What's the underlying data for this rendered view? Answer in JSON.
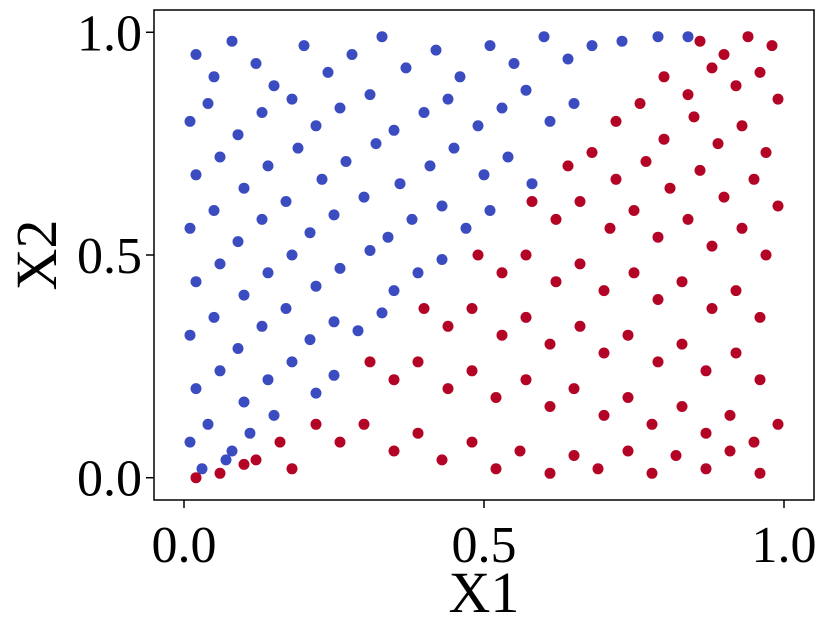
{
  "chart_data": {
    "type": "scatter",
    "title": "",
    "xlabel": "X1",
    "ylabel": "X2",
    "xlim": [
      -0.05,
      1.05
    ],
    "ylim": [
      -0.05,
      1.05
    ],
    "xticks": [
      0.0,
      0.5,
      1.0
    ],
    "yticks": [
      0.0,
      0.5,
      1.0
    ],
    "xtick_labels": [
      "0.0",
      "0.5",
      "1.0"
    ],
    "ytick_labels": [
      "0.0",
      "0.5",
      "1.0"
    ],
    "grid": false,
    "legend": "none",
    "boundary": "X2 = 1.2 * X1 - 0.02",
    "series": [
      {
        "color": "#3b4cc0",
        "points": [
          [
            0.02,
            0.95
          ],
          [
            0.05,
            0.9
          ],
          [
            0.08,
            0.98
          ],
          [
            0.12,
            0.93
          ],
          [
            0.15,
            0.88
          ],
          [
            0.2,
            0.97
          ],
          [
            0.24,
            0.91
          ],
          [
            0.28,
            0.95
          ],
          [
            0.33,
            0.99
          ],
          [
            0.37,
            0.92
          ],
          [
            0.42,
            0.96
          ],
          [
            0.46,
            0.9
          ],
          [
            0.51,
            0.97
          ],
          [
            0.55,
            0.93
          ],
          [
            0.6,
            0.99
          ],
          [
            0.64,
            0.94
          ],
          [
            0.68,
            0.97
          ],
          [
            0.73,
            0.98
          ],
          [
            0.79,
            0.99
          ],
          [
            0.84,
            0.99
          ],
          [
            0.01,
            0.8
          ],
          [
            0.04,
            0.84
          ],
          [
            0.09,
            0.77
          ],
          [
            0.13,
            0.82
          ],
          [
            0.18,
            0.85
          ],
          [
            0.22,
            0.79
          ],
          [
            0.26,
            0.83
          ],
          [
            0.31,
            0.86
          ],
          [
            0.35,
            0.78
          ],
          [
            0.4,
            0.82
          ],
          [
            0.44,
            0.85
          ],
          [
            0.49,
            0.79
          ],
          [
            0.53,
            0.83
          ],
          [
            0.57,
            0.87
          ],
          [
            0.61,
            0.8
          ],
          [
            0.65,
            0.84
          ],
          [
            0.02,
            0.68
          ],
          [
            0.06,
            0.72
          ],
          [
            0.1,
            0.65
          ],
          [
            0.14,
            0.7
          ],
          [
            0.19,
            0.74
          ],
          [
            0.23,
            0.67
          ],
          [
            0.27,
            0.71
          ],
          [
            0.32,
            0.75
          ],
          [
            0.36,
            0.66
          ],
          [
            0.41,
            0.7
          ],
          [
            0.45,
            0.74
          ],
          [
            0.5,
            0.68
          ],
          [
            0.54,
            0.72
          ],
          [
            0.58,
            0.66
          ],
          [
            0.01,
            0.56
          ],
          [
            0.05,
            0.6
          ],
          [
            0.09,
            0.53
          ],
          [
            0.13,
            0.58
          ],
          [
            0.17,
            0.62
          ],
          [
            0.21,
            0.55
          ],
          [
            0.25,
            0.59
          ],
          [
            0.3,
            0.63
          ],
          [
            0.34,
            0.54
          ],
          [
            0.38,
            0.58
          ],
          [
            0.43,
            0.61
          ],
          [
            0.47,
            0.56
          ],
          [
            0.51,
            0.6
          ],
          [
            0.02,
            0.44
          ],
          [
            0.06,
            0.48
          ],
          [
            0.1,
            0.41
          ],
          [
            0.14,
            0.46
          ],
          [
            0.18,
            0.5
          ],
          [
            0.22,
            0.43
          ],
          [
            0.26,
            0.47
          ],
          [
            0.31,
            0.51
          ],
          [
            0.35,
            0.42
          ],
          [
            0.39,
            0.46
          ],
          [
            0.43,
            0.49
          ],
          [
            0.01,
            0.32
          ],
          [
            0.05,
            0.36
          ],
          [
            0.09,
            0.29
          ],
          [
            0.13,
            0.34
          ],
          [
            0.17,
            0.38
          ],
          [
            0.21,
            0.31
          ],
          [
            0.25,
            0.35
          ],
          [
            0.29,
            0.33
          ],
          [
            0.33,
            0.37
          ],
          [
            0.02,
            0.2
          ],
          [
            0.06,
            0.24
          ],
          [
            0.1,
            0.17
          ],
          [
            0.14,
            0.22
          ],
          [
            0.18,
            0.26
          ],
          [
            0.22,
            0.19
          ],
          [
            0.25,
            0.23
          ],
          [
            0.01,
            0.08
          ],
          [
            0.04,
            0.12
          ],
          [
            0.08,
            0.06
          ],
          [
            0.11,
            0.1
          ],
          [
            0.15,
            0.14
          ],
          [
            0.03,
            0.02
          ],
          [
            0.07,
            0.04
          ]
        ]
      },
      {
        "color": "#b40426",
        "points": [
          [
            0.86,
            0.98
          ],
          [
            0.9,
            0.95
          ],
          [
            0.94,
            0.99
          ],
          [
            0.98,
            0.97
          ],
          [
            0.8,
            0.9
          ],
          [
            0.84,
            0.86
          ],
          [
            0.88,
            0.92
          ],
          [
            0.92,
            0.88
          ],
          [
            0.96,
            0.91
          ],
          [
            0.99,
            0.85
          ],
          [
            0.72,
            0.8
          ],
          [
            0.76,
            0.84
          ],
          [
            0.8,
            0.76
          ],
          [
            0.85,
            0.81
          ],
          [
            0.89,
            0.75
          ],
          [
            0.93,
            0.79
          ],
          [
            0.97,
            0.73
          ],
          [
            0.64,
            0.7
          ],
          [
            0.68,
            0.73
          ],
          [
            0.72,
            0.67
          ],
          [
            0.77,
            0.71
          ],
          [
            0.81,
            0.65
          ],
          [
            0.86,
            0.69
          ],
          [
            0.9,
            0.63
          ],
          [
            0.95,
            0.67
          ],
          [
            0.99,
            0.61
          ],
          [
            0.58,
            0.62
          ],
          [
            0.62,
            0.58
          ],
          [
            0.66,
            0.62
          ],
          [
            0.71,
            0.56
          ],
          [
            0.75,
            0.6
          ],
          [
            0.79,
            0.54
          ],
          [
            0.84,
            0.58
          ],
          [
            0.88,
            0.52
          ],
          [
            0.93,
            0.56
          ],
          [
            0.97,
            0.5
          ],
          [
            0.49,
            0.5
          ],
          [
            0.53,
            0.46
          ],
          [
            0.57,
            0.5
          ],
          [
            0.62,
            0.44
          ],
          [
            0.66,
            0.48
          ],
          [
            0.7,
            0.42
          ],
          [
            0.75,
            0.46
          ],
          [
            0.79,
            0.4
          ],
          [
            0.83,
            0.44
          ],
          [
            0.88,
            0.38
          ],
          [
            0.92,
            0.42
          ],
          [
            0.96,
            0.36
          ],
          [
            0.4,
            0.38
          ],
          [
            0.44,
            0.34
          ],
          [
            0.48,
            0.38
          ],
          [
            0.53,
            0.32
          ],
          [
            0.57,
            0.36
          ],
          [
            0.61,
            0.3
          ],
          [
            0.66,
            0.34
          ],
          [
            0.7,
            0.28
          ],
          [
            0.74,
            0.32
          ],
          [
            0.79,
            0.26
          ],
          [
            0.83,
            0.3
          ],
          [
            0.87,
            0.24
          ],
          [
            0.92,
            0.28
          ],
          [
            0.96,
            0.22
          ],
          [
            0.31,
            0.26
          ],
          [
            0.35,
            0.22
          ],
          [
            0.39,
            0.26
          ],
          [
            0.44,
            0.2
          ],
          [
            0.48,
            0.24
          ],
          [
            0.52,
            0.18
          ],
          [
            0.57,
            0.22
          ],
          [
            0.61,
            0.16
          ],
          [
            0.65,
            0.2
          ],
          [
            0.7,
            0.14
          ],
          [
            0.74,
            0.18
          ],
          [
            0.78,
            0.12
          ],
          [
            0.83,
            0.16
          ],
          [
            0.87,
            0.1
          ],
          [
            0.91,
            0.14
          ],
          [
            0.95,
            0.08
          ],
          [
            0.99,
            0.12
          ],
          [
            0.22,
            0.12
          ],
          [
            0.26,
            0.08
          ],
          [
            0.3,
            0.12
          ],
          [
            0.35,
            0.06
          ],
          [
            0.39,
            0.1
          ],
          [
            0.43,
            0.04
          ],
          [
            0.48,
            0.08
          ],
          [
            0.52,
            0.02
          ],
          [
            0.56,
            0.06
          ],
          [
            0.61,
            0.01
          ],
          [
            0.65,
            0.05
          ],
          [
            0.69,
            0.02
          ],
          [
            0.74,
            0.06
          ],
          [
            0.78,
            0.01
          ],
          [
            0.82,
            0.05
          ],
          [
            0.87,
            0.02
          ],
          [
            0.91,
            0.06
          ],
          [
            0.96,
            0.01
          ],
          [
            0.12,
            0.04
          ],
          [
            0.16,
            0.08
          ],
          [
            0.18,
            0.02
          ],
          [
            0.02,
            0.0
          ],
          [
            0.06,
            0.01
          ],
          [
            0.1,
            0.03
          ]
        ]
      }
    ]
  }
}
